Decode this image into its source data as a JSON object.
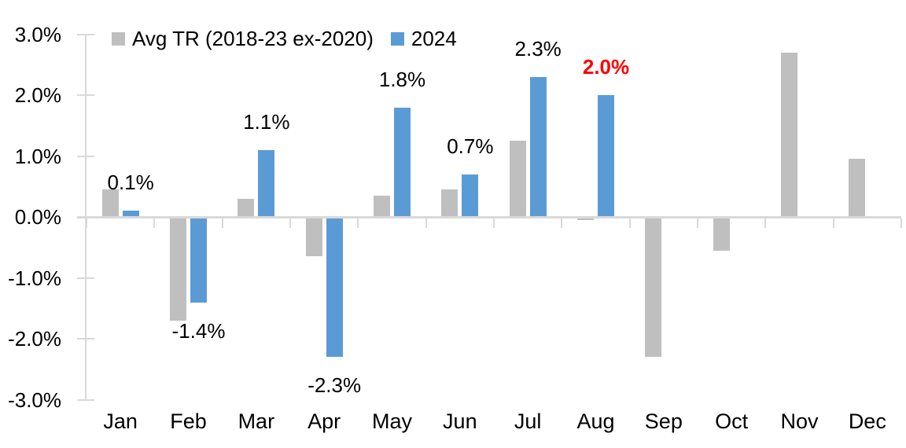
{
  "chart_data": {
    "type": "bar",
    "title": "",
    "xlabel": "",
    "ylabel": "",
    "y_unit": "%",
    "ylim": [
      -3.0,
      3.0
    ],
    "yticks": [
      "3.0%",
      "2.0%",
      "1.0%",
      "0.0%",
      "-1.0%",
      "-2.0%",
      "-3.0%"
    ],
    "ytick_values": [
      3,
      2,
      1,
      0,
      -1,
      -2,
      -3
    ],
    "categories": [
      "Jan",
      "Feb",
      "Mar",
      "Apr",
      "May",
      "Jun",
      "Jul",
      "Aug",
      "Sep",
      "Oct",
      "Nov",
      "Dec"
    ],
    "grid": false,
    "legend_position": "top",
    "series": [
      {
        "name": "Avg TR (2018-23 ex-2020)",
        "color": "#BFBFBF",
        "values": [
          0.45,
          -1.7,
          0.3,
          -0.65,
          0.35,
          0.45,
          1.25,
          -0.05,
          -2.3,
          -0.55,
          2.7,
          0.95
        ],
        "data_labels": [
          null,
          null,
          null,
          null,
          null,
          null,
          null,
          null,
          null,
          null,
          null,
          null
        ]
      },
      {
        "name": "2024",
        "color": "#5B9BD5",
        "values": [
          0.1,
          -1.4,
          1.1,
          -2.3,
          1.8,
          0.7,
          2.3,
          2.0,
          null,
          null,
          null,
          null
        ],
        "data_labels": [
          "0.1%",
          "-1.4%",
          "1.1%",
          "-2.3%",
          "1.8%",
          "0.7%",
          "2.3%",
          "2.0%",
          null,
          null,
          null,
          null
        ],
        "label_colors": [
          "#000000",
          "#000000",
          "#000000",
          "#000000",
          "#000000",
          "#000000",
          "#000000",
          "#FF0000",
          null,
          null,
          null,
          null
        ],
        "label_weights": [
          "normal",
          "normal",
          "normal",
          "normal",
          "normal",
          "normal",
          "normal",
          "bold",
          null,
          null,
          null,
          null
        ]
      }
    ],
    "colors": {
      "axis": "#D9D9D9",
      "text": "#000000",
      "highlight": "#FF0000",
      "background": "#FFFFFF"
    }
  }
}
